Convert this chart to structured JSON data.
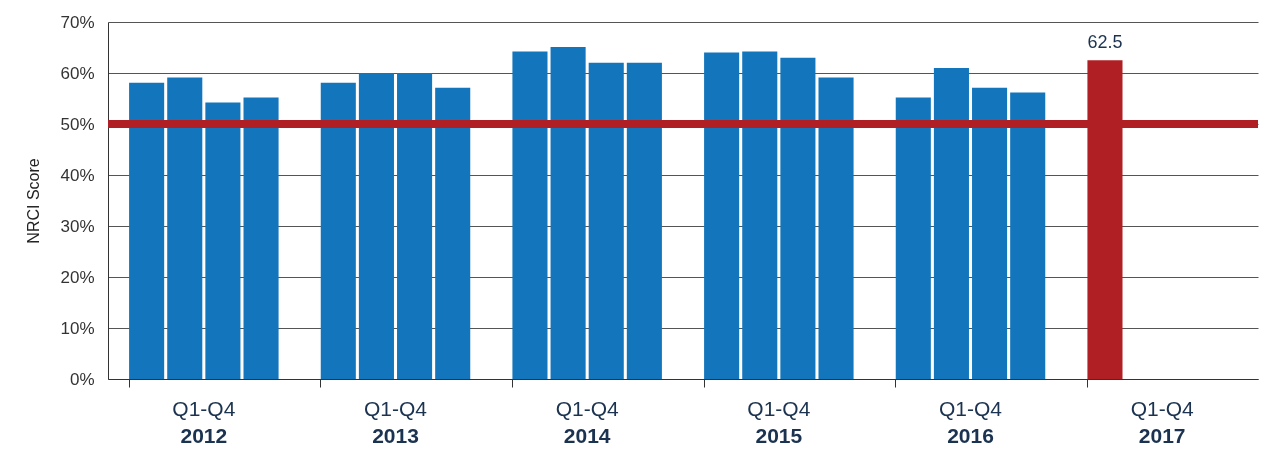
{
  "chart_data": {
    "type": "bar",
    "ylabel": "NRCI Score",
    "categories": [
      "Q1-Q4\n2012",
      "Q1-Q4\n2013",
      "Q1-Q4\n2014",
      "Q1-Q4\n2015",
      "Q1-Q4\n2016",
      "Q1-Q4\n2017"
    ],
    "series": [
      {
        "colors": [
          "#1376bd",
          "#1376bd",
          "#1376bd",
          "#1376bd",
          "#1376bd",
          "#b01f24"
        ],
        "values": [
          58.1,
          58.1,
          64.2,
          64.0,
          55.2,
          62.5
        ],
        "value_labels": [
          null,
          null,
          null,
          null,
          null,
          "62.5"
        ]
      },
      {
        "color": "#1376bd",
        "values": [
          59.1,
          60.0,
          65.1,
          64.2,
          61.0,
          null
        ]
      },
      {
        "color": "#1376bd",
        "values": [
          54.2,
          60.0,
          62.0,
          63.0,
          57.1,
          null
        ]
      },
      {
        "color": "#1376bd",
        "values": [
          55.2,
          57.1,
          62.0,
          59.1,
          56.2,
          null
        ]
      }
    ],
    "ylim": [
      0,
      70
    ],
    "yticks": [
      {
        "value": 0,
        "label": "0%"
      },
      {
        "value": 10,
        "label": "10%"
      },
      {
        "value": 20,
        "label": "20%"
      },
      {
        "value": 30,
        "label": "30%"
      },
      {
        "value": 40,
        "label": "40%"
      },
      {
        "value": 50,
        "label": "50%"
      },
      {
        "value": 60,
        "label": "60%"
      },
      {
        "value": 70,
        "label": "70%"
      }
    ],
    "ref_lines": [
      {
        "axis": "y",
        "value": 50,
        "color": "#b01f24"
      }
    ],
    "grid": "y"
  }
}
